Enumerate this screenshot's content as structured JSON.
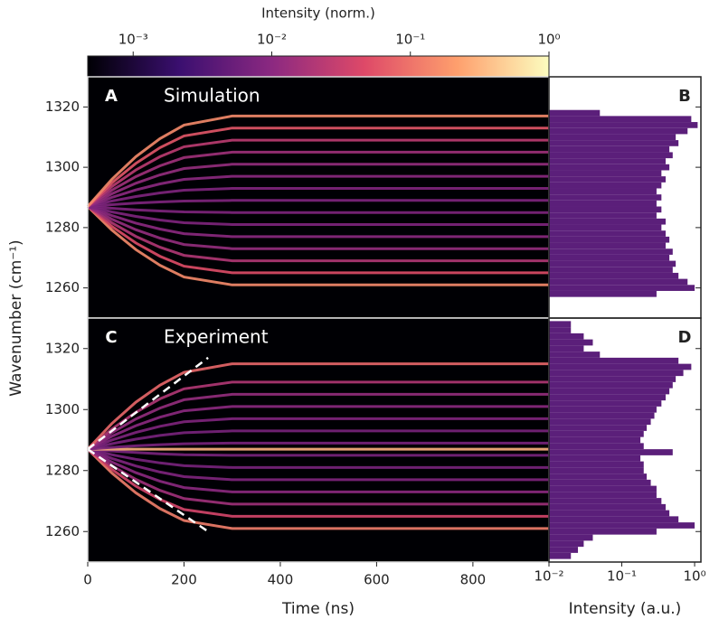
{
  "chart_data": [
    {
      "type": "colorbar",
      "title": "Intensity (norm.)",
      "xscale": "log",
      "xlim": [
        0.00047,
        1
      ],
      "xticks": [
        {
          "value": 0.001,
          "label": "10⁻³"
        },
        {
          "value": 0.01,
          "label": "10⁻²"
        },
        {
          "value": 0.1,
          "label": "10⁻¹"
        },
        {
          "value": 1,
          "label": "10⁰"
        }
      ],
      "colormap": [
        "#000004",
        "#3b0f70",
        "#8c2981",
        "#de4968",
        "#fe9f6d",
        "#fcfdbf"
      ]
    },
    {
      "type": "heatmap",
      "label": "A",
      "title": "Simulation",
      "ylabel": "Wavenumber (cm⁻¹)",
      "x": [
        0,
        50,
        100,
        150,
        200,
        300,
        958
      ],
      "xlim": [
        0,
        958
      ],
      "ylim": [
        1250,
        1330
      ],
      "yticks": [
        1260,
        1280,
        1300,
        1320
      ],
      "modes": [
        {
          "values": [
            1287,
            1279.2,
            1272.7,
            1267.5,
            1263.6,
            1261,
            1261
          ],
          "intensity": 0.15
        },
        {
          "values": [
            1287,
            1280.4,
            1274.9,
            1270.5,
            1267.2,
            1265,
            1265
          ],
          "intensity": 0.05
        },
        {
          "values": [
            1287,
            1281.6,
            1277.1,
            1273.5,
            1270.8,
            1269,
            1269
          ],
          "intensity": 0.02
        },
        {
          "values": [
            1287,
            1282.8,
            1279.3,
            1276.5,
            1274.4,
            1273,
            1273
          ],
          "intensity": 0.012
        },
        {
          "values": [
            1287,
            1284,
            1281.5,
            1279.5,
            1278,
            1277,
            1277
          ],
          "intensity": 0.01
        },
        {
          "values": [
            1287,
            1285.2,
            1283.7,
            1282.5,
            1281.6,
            1281,
            1281
          ],
          "intensity": 0.008
        },
        {
          "values": [
            1287,
            1286.4,
            1285.9,
            1285.5,
            1285.2,
            1285,
            1285
          ],
          "intensity": 0.008
        },
        {
          "values": [
            1287,
            1287.6,
            1288.1,
            1288.5,
            1288.8,
            1289,
            1289
          ],
          "intensity": 0.008
        },
        {
          "values": [
            1287,
            1288.8,
            1290.3,
            1291.5,
            1292.4,
            1293,
            1293
          ],
          "intensity": 0.008
        },
        {
          "values": [
            1287,
            1290,
            1292.5,
            1294.5,
            1296,
            1297,
            1297
          ],
          "intensity": 0.01
        },
        {
          "values": [
            1287,
            1291.2,
            1294.7,
            1297.5,
            1299.6,
            1301,
            1301
          ],
          "intensity": 0.012
        },
        {
          "values": [
            1287,
            1292.4,
            1296.9,
            1300.5,
            1303.2,
            1305,
            1305
          ],
          "intensity": 0.015
        },
        {
          "values": [
            1287,
            1293.6,
            1299.1,
            1303.5,
            1306.8,
            1309,
            1309
          ],
          "intensity": 0.025
        },
        {
          "values": [
            1287,
            1294.8,
            1301.3,
            1306.5,
            1310.4,
            1313,
            1313
          ],
          "intensity": 0.06
        },
        {
          "values": [
            1287,
            1296,
            1303.5,
            1309.5,
            1314,
            1317,
            1317
          ],
          "intensity": 0.15
        }
      ]
    },
    {
      "type": "barh",
      "label": "B",
      "xscale": "log",
      "xlim": [
        0.01,
        1.22
      ],
      "ylim": [
        1250,
        1330
      ],
      "yticks": [
        1260,
        1280,
        1300,
        1320
      ],
      "color": "#5b1f7a",
      "y": [
        1258,
        1260,
        1262,
        1264,
        1266,
        1268,
        1270,
        1272,
        1274,
        1276,
        1278,
        1280,
        1282,
        1284,
        1286,
        1288,
        1290,
        1292,
        1294,
        1296,
        1298,
        1300,
        1302,
        1304,
        1306,
        1308,
        1310,
        1312,
        1314,
        1316,
        1318
      ],
      "values": [
        0.3,
        1.0,
        0.8,
        0.6,
        0.5,
        0.55,
        0.45,
        0.5,
        0.4,
        0.45,
        0.4,
        0.35,
        0.4,
        0.3,
        0.35,
        0.3,
        0.35,
        0.3,
        0.35,
        0.4,
        0.35,
        0.45,
        0.4,
        0.5,
        0.45,
        0.6,
        0.55,
        0.8,
        1.1,
        0.9,
        0.05
      ]
    },
    {
      "type": "heatmap",
      "label": "C",
      "title": "Experiment",
      "xlabel": "Time (ns)",
      "x": [
        0,
        50,
        100,
        150,
        200,
        300,
        958
      ],
      "xlim": [
        0,
        958
      ],
      "xticks": [
        0,
        200,
        400,
        600,
        800
      ],
      "ylim": [
        1250,
        1330
      ],
      "yticks": [
        1260,
        1280,
        1300,
        1320
      ],
      "modes": [
        {
          "values": [
            1287,
            1279.2,
            1272.7,
            1267.5,
            1263.6,
            1261,
            1261
          ],
          "intensity": 0.12
        },
        {
          "values": [
            1287,
            1280.4,
            1274.9,
            1270.5,
            1267.2,
            1265,
            1265
          ],
          "intensity": 0.04
        },
        {
          "values": [
            1287,
            1281.6,
            1277.1,
            1273.5,
            1270.8,
            1269,
            1269
          ],
          "intensity": 0.015
        },
        {
          "values": [
            1287,
            1282.8,
            1279.3,
            1276.5,
            1274.4,
            1273,
            1273
          ],
          "intensity": 0.01
        },
        {
          "values": [
            1287,
            1284,
            1281.5,
            1279.5,
            1278,
            1277,
            1277
          ],
          "intensity": 0.008
        },
        {
          "values": [
            1287,
            1285.2,
            1283.7,
            1282.5,
            1281.6,
            1281,
            1281
          ],
          "intensity": 0.007
        },
        {
          "values": [
            1287,
            1286.4,
            1285.9,
            1285.5,
            1285.2,
            1285,
            1285
          ],
          "intensity": 0.007
        },
        {
          "values": [
            1287,
            1287,
            1287,
            1287,
            1287,
            1287,
            1287
          ],
          "intensity": 0.3
        },
        {
          "values": [
            1287,
            1287.6,
            1288.1,
            1288.5,
            1288.8,
            1289,
            1289
          ],
          "intensity": 0.007
        },
        {
          "values": [
            1287,
            1288.8,
            1290.3,
            1291.5,
            1292.4,
            1293,
            1293
          ],
          "intensity": 0.007
        },
        {
          "values": [
            1287,
            1290,
            1292.5,
            1294.5,
            1296,
            1297,
            1297
          ],
          "intensity": 0.008
        },
        {
          "values": [
            1287,
            1291.2,
            1294.7,
            1297.5,
            1299.6,
            1301,
            1301
          ],
          "intensity": 0.01
        },
        {
          "values": [
            1287,
            1292.4,
            1296.9,
            1300.5,
            1303.2,
            1305,
            1305
          ],
          "intensity": 0.012
        },
        {
          "values": [
            1287,
            1293.6,
            1299.1,
            1303.5,
            1306.8,
            1309,
            1309
          ],
          "intensity": 0.02
        },
        {
          "values": [
            1287,
            1295.4,
            1302.4,
            1308,
            1312.2,
            1315,
            1315
          ],
          "intensity": 0.08
        }
      ],
      "guides": [
        {
          "x": [
            0,
            250
          ],
          "y": [
            1287,
            1317
          ]
        },
        {
          "x": [
            0,
            250
          ],
          "y": [
            1287,
            1260
          ]
        }
      ]
    },
    {
      "type": "barh",
      "label": "D",
      "xscale": "log",
      "xlim": [
        0.01,
        1.22
      ],
      "ylim": [
        1250,
        1330
      ],
      "yticks": [
        1260,
        1280,
        1300,
        1320
      ],
      "color": "#5b1f7a",
      "xlabel": "Intensity (a.u.)",
      "xticks": [
        {
          "value": 0.01,
          "label": "10⁻²"
        },
        {
          "value": 0.1,
          "label": "10⁻¹"
        },
        {
          "value": 1,
          "label": "10⁰"
        }
      ],
      "y": [
        1252,
        1254,
        1256,
        1258,
        1260,
        1262,
        1264,
        1266,
        1268,
        1270,
        1272,
        1274,
        1276,
        1278,
        1280,
        1282,
        1284,
        1286,
        1288,
        1290,
        1292,
        1294,
        1296,
        1298,
        1300,
        1302,
        1304,
        1306,
        1308,
        1310,
        1312,
        1314,
        1316,
        1318,
        1320,
        1322,
        1324,
        1326,
        1328
      ],
      "values": [
        0.02,
        0.025,
        0.03,
        0.04,
        0.3,
        1.0,
        0.6,
        0.45,
        0.4,
        0.35,
        0.3,
        0.3,
        0.25,
        0.22,
        0.2,
        0.2,
        0.18,
        0.5,
        0.2,
        0.18,
        0.2,
        0.22,
        0.25,
        0.28,
        0.3,
        0.35,
        0.4,
        0.45,
        0.5,
        0.55,
        0.7,
        0.9,
        0.6,
        0.05,
        0.03,
        0.04,
        0.03,
        0.02,
        0.02
      ]
    }
  ]
}
